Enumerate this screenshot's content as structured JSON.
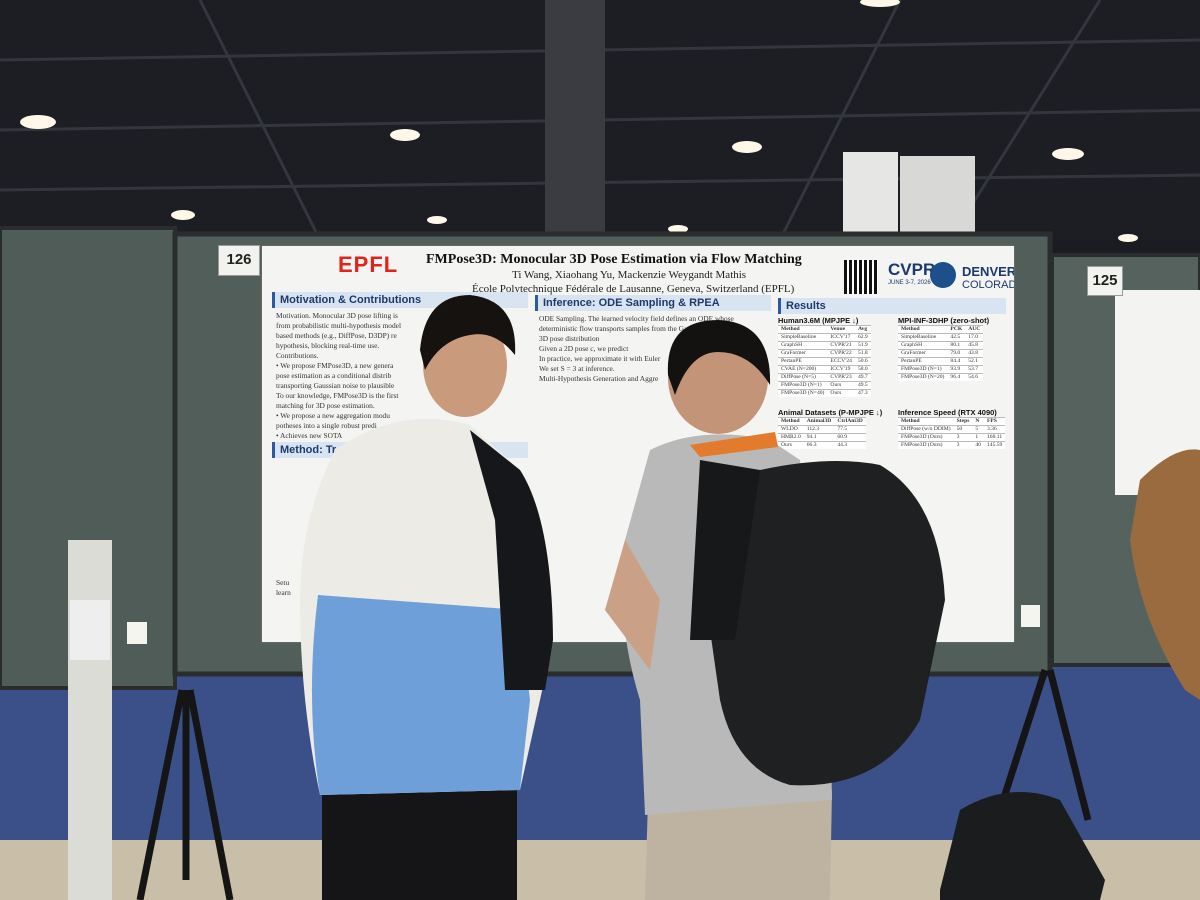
{
  "boards": {
    "left_number": "126",
    "right_number": "125"
  },
  "poster": {
    "logo": "EPFL",
    "title": "FMPose3D: Monocular 3D Pose Estimation via Flow Matching",
    "authors": "Ti Wang, Xiaohang Yu, Mackenzie Weygandt Mathis",
    "affiliation": "École Polytechnique Fédérale de Lausanne, Geneva, Switzerland (EPFL)",
    "conference": {
      "name": "CVPR",
      "dates": "JUNE 3-7, 2026",
      "city": "DENVER",
      "state": "COLORADO"
    },
    "sections": [
      {
        "heading": "Motivation & Contributions",
        "lines": [
          "Motivation. Monocular 3D pose lifting is",
          "from probabilistic multi-hypothesis model",
          "based methods (e.g., DiffPose, D3DP) re",
          "hypothesis, blocking real-time use.",
          "Contributions.",
          "• We propose FMPose3D, a new genera",
          "pose estimation as a conditional distrib",
          "transporting Gaussian noise to plausible",
          "To our knowledge, FMPose3D is the first",
          "matching for 3D pose estimation.",
          "• We propose a new aggregation modu",
          "potheses into a single robust predi",
          "• Achieves new SOTA"
        ]
      },
      {
        "heading": "Inference: ODE Sampling & RPEA",
        "lines": [
          "ODE Sampling. The learned velocity field defines an ODE whose",
          "deterministic flow transports samples from the Gaussian",
          "3D pose distribution",
          "Given a 2D pose c, we predict",
          "In practice, we approximate it with Euler",
          "We set S = 3 at inference.",
          "Multi-Hypothesis Generation and Aggre"
        ]
      },
      {
        "heading": "Method: Tr",
        "lines": [
          "Setu",
          "learn"
        ]
      }
    ],
    "results": {
      "heading": "Results",
      "tables": [
        {
          "caption": "Human3.6M (MPJPE ↓)",
          "header": [
            "Method",
            "Venue",
            "Avg"
          ],
          "rows": [
            [
              "SimpleBaseline",
              "ICCV'17",
              "62.9"
            ],
            [
              "GraphSH",
              "CVPR'21",
              "51.9"
            ],
            [
              "GraFormer",
              "CVPR'22",
              "51.8"
            ],
            [
              "PertanPE",
              "ECCV'24",
              "50.6"
            ],
            [
              "CVAE (N=200)",
              "ICCV'19",
              "58.0"
            ],
            [
              "DiffPose (N=5)",
              "CVPR'23",
              "49.7"
            ],
            [
              "FMPose3D (N=1)",
              "Ours",
              "49.5"
            ],
            [
              "FMPose3D (N=40)",
              "Ours",
              "47.3"
            ]
          ]
        },
        {
          "caption": "MPI-INF-3DHP (zero-shot)",
          "header": [
            "Method",
            "PCK",
            "AUC"
          ],
          "rows": [
            [
              "SimpleBaseline",
              "42.5",
              "17.0"
            ],
            [
              "GraphSH",
              "80.1",
              "45.8"
            ],
            [
              "GraFormer",
              "79.0",
              "43.8"
            ],
            [
              "PertanPE",
              "84.4",
              "52.1"
            ],
            [
              "FMPose3D (N=1)",
              "93.9",
              "53.7"
            ],
            [
              "FMPose3D (N=20)",
              "96.4",
              "54.6"
            ]
          ]
        },
        {
          "caption": "Animal Datasets (P-MPJPE ↓)",
          "header": [
            "Method",
            "Animal3D",
            "CtrlAni3D"
          ],
          "rows": [
            [
              "WLDO",
              "112.3",
              "77.5"
            ],
            [
              "HMR2.0",
              "94.1",
              "60.9"
            ],
            [
              "Ours",
              "66.3",
              "44.3"
            ]
          ]
        },
        {
          "caption": "Inference Speed (RTX 4090)",
          "header": [
            "Method",
            "Steps",
            "N",
            "FPS"
          ],
          "rows": [
            [
              "DiffPose (w/o DDIM)",
              "50",
              "5",
              "3.36"
            ],
            [
              "FMPose3D (Ours)",
              "3",
              "1",
              "160.11"
            ],
            [
              "FMPose3D (Ours)",
              "3",
              "40",
              "145.59"
            ]
          ]
        }
      ]
    }
  }
}
